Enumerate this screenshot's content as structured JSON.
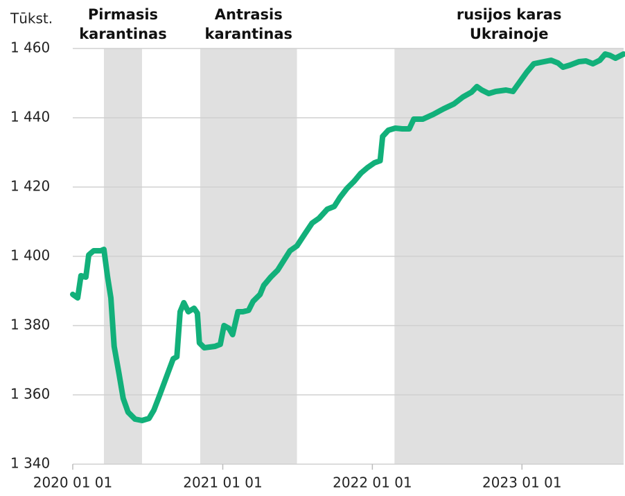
{
  "chart_data": {
    "type": "line",
    "y_unit": "Tūkst.",
    "x": [
      "2020-01-01",
      "2020-01-13",
      "2020-01-21",
      "2020-02-02",
      "2020-02-09",
      "2020-02-21",
      "2020-03-09",
      "2020-03-17",
      "2020-03-26",
      "2020-04-03",
      "2020-04-11",
      "2020-04-23",
      "2020-05-03",
      "2020-05-15",
      "2020-06-01",
      "2020-06-18",
      "2020-07-05",
      "2020-07-17",
      "2020-07-30",
      "2020-08-16",
      "2020-09-02",
      "2020-09-11",
      "2020-09-19",
      "2020-09-28",
      "2020-10-09",
      "2020-10-23",
      "2020-10-31",
      "2020-11-05",
      "2020-11-17",
      "2020-12-13",
      "2020-12-26",
      "2021-01-04",
      "2021-01-16",
      "2021-01-25",
      "2021-02-07",
      "2021-02-19",
      "2021-03-05",
      "2021-03-16",
      "2021-04-02",
      "2021-04-11",
      "2021-04-28",
      "2021-05-15",
      "2021-05-31",
      "2021-06-14",
      "2021-07-01",
      "2021-07-21",
      "2021-08-07",
      "2021-08-24",
      "2021-09-13",
      "2021-09-30",
      "2021-10-14",
      "2021-10-31",
      "2021-11-17",
      "2021-12-04",
      "2021-12-20",
      "2022-01-06",
      "2022-01-20",
      "2022-01-26",
      "2022-02-09",
      "2022-02-26",
      "2022-03-15",
      "2022-04-01",
      "2022-04-12",
      "2022-05-04",
      "2022-05-30",
      "2022-06-24",
      "2022-07-19",
      "2022-08-10",
      "2022-08-31",
      "2022-09-13",
      "2022-09-25",
      "2022-10-12",
      "2022-10-29",
      "2022-11-23",
      "2022-12-10",
      "2022-12-27",
      "2023-01-13",
      "2023-01-30",
      "2023-02-24",
      "2023-03-13",
      "2023-03-30",
      "2023-04-11",
      "2023-04-28",
      "2023-05-20",
      "2023-06-06",
      "2023-06-23",
      "2023-07-10",
      "2023-07-23",
      "2023-08-04",
      "2023-08-17",
      "2023-09-06"
    ],
    "series": [
      {
        "color": "#12b07a",
        "values": [
          1389,
          1388,
          1394.4,
          1394,
          1400.4,
          1401.6,
          1401.6,
          1402,
          1394,
          1388,
          1374,
          1366,
          1359,
          1355,
          1353,
          1352.6,
          1353.2,
          1355.6,
          1359.6,
          1365,
          1370.4,
          1371,
          1384,
          1386.6,
          1384,
          1385,
          1383.6,
          1375,
          1373.6,
          1374,
          1374.6,
          1380,
          1379.2,
          1377.4,
          1384,
          1384,
          1384.4,
          1387,
          1389,
          1391.6,
          1394,
          1396,
          1399,
          1401.6,
          1403,
          1406.6,
          1409.6,
          1411,
          1413.6,
          1414.4,
          1417,
          1419.6,
          1421.6,
          1424,
          1425.6,
          1427,
          1427.6,
          1434.6,
          1436.4,
          1437,
          1436.8,
          1436.8,
          1439.6,
          1439.6,
          1441,
          1442.6,
          1444,
          1446,
          1447.4,
          1449,
          1448,
          1447,
          1447.6,
          1448,
          1447.6,
          1450.4,
          1453.2,
          1455.6,
          1456.2,
          1456.6,
          1455.8,
          1454.6,
          1455.2,
          1456.2,
          1456.4,
          1455.6,
          1456.6,
          1458.4,
          1458,
          1457.2,
          1458.4
        ]
      }
    ],
    "bands": [
      {
        "start": "2020-03-17",
        "end": "2020-06-18",
        "label": [
          "Pirmasis",
          "karantinas"
        ]
      },
      {
        "start": "2020-11-07",
        "end": "2021-07-01",
        "label": [
          "Antrasis",
          "karantinas"
        ]
      },
      {
        "start": "2022-02-24",
        "end": "2023-09-06",
        "label": [
          "rusijos karas",
          "Ukrainoje"
        ]
      }
    ],
    "xlim": [
      "2020-01-01",
      "2023-09-06"
    ],
    "xticks": [
      {
        "value": "2020-01-01",
        "label": "2020 01 01"
      },
      {
        "value": "2021-01-01",
        "label": "2021 01 01"
      },
      {
        "value": "2022-01-01",
        "label": "2022 01 01"
      },
      {
        "value": "2023-01-01",
        "label": "2023 01 01"
      }
    ],
    "ylim": [
      1340,
      1460
    ],
    "yticks": [
      {
        "value": 1340,
        "label": "1 340"
      },
      {
        "value": 1360,
        "label": "1 360"
      },
      {
        "value": 1380,
        "label": "1 380"
      },
      {
        "value": 1400,
        "label": "1 400"
      },
      {
        "value": 1420,
        "label": "1 420"
      },
      {
        "value": 1440,
        "label": "1 440"
      },
      {
        "value": 1460,
        "label": "1 460"
      }
    ],
    "grid": true
  }
}
